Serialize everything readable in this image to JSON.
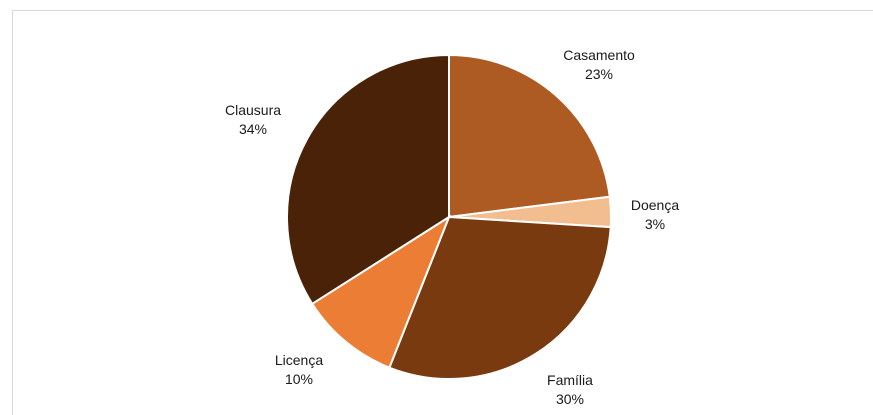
{
  "chart_data": {
    "type": "pie",
    "slices": [
      {
        "label": "Casamento",
        "value": 23,
        "pct_label": "23%",
        "color": "#ad5a23"
      },
      {
        "label": "Doença",
        "value": 3,
        "pct_label": "3%",
        "color": "#f2bd8f"
      },
      {
        "label": "Família",
        "value": 30,
        "pct_label": "30%",
        "color": "#7a3a0f"
      },
      {
        "label": "Licença",
        "value": 10,
        "pct_label": "10%",
        "color": "#eb7d35"
      },
      {
        "label": "Clausura",
        "value": 34,
        "pct_label": "34%",
        "color": "#4a2208"
      }
    ],
    "legend": "none",
    "start_angle": "top, clockwise"
  }
}
